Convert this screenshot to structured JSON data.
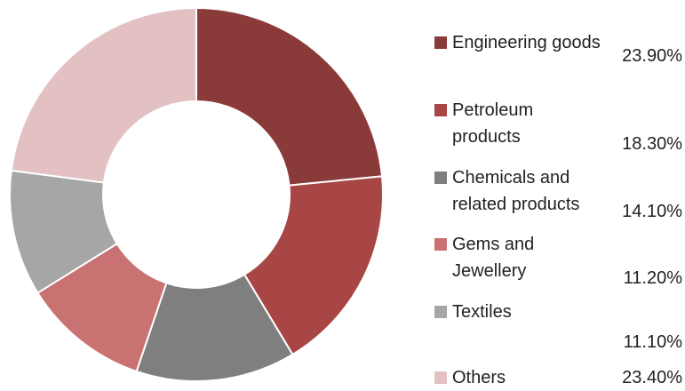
{
  "chart_data": {
    "type": "donut",
    "categories": [
      "Engineering goods",
      "Petroleum products",
      "Chemicals and related products",
      "Gems and Jewellery",
      "Textiles",
      "Others"
    ],
    "values": [
      23.9,
      18.3,
      14.1,
      11.2,
      11.1,
      23.4
    ],
    "value_labels": [
      "23.90%",
      "18.30%",
      "14.10%",
      "11.20%",
      "11.10%",
      "23.40%"
    ],
    "colors": [
      "#8b3a3a",
      "#a84545",
      "#7f7f7f",
      "#c87272",
      "#a6a6a6",
      "#e3c1c3"
    ]
  }
}
